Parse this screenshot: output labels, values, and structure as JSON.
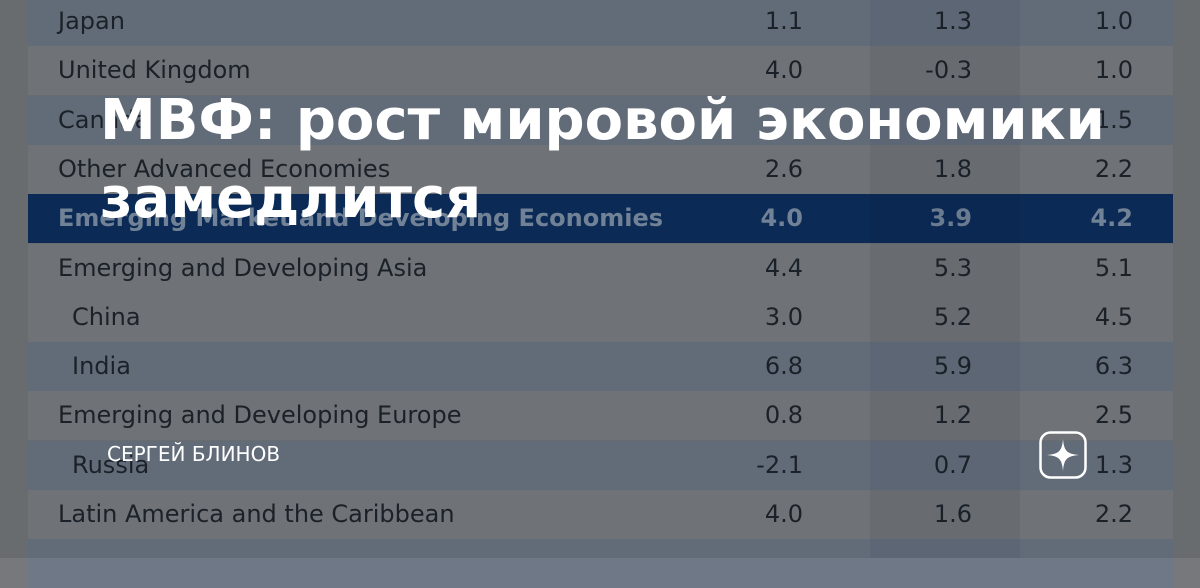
{
  "title": "МВФ: рост мировой экономики замедлится",
  "author": "СЕРГЕЙ БЛИНОВ",
  "table": {
    "rows": [
      [
        "Japan",
        "1.1",
        "1.3",
        "1.0"
      ],
      [
        "United Kingdom",
        "4.0",
        "-0.3",
        "1.0"
      ],
      [
        "Canada",
        null,
        null,
        "1.5"
      ],
      [
        "Other Advanced Economies",
        "2.6",
        "1.8",
        "2.2"
      ],
      [
        "Emerging Market and Developing Economies",
        "4.0",
        "3.9",
        "4.2"
      ],
      [
        "Emerging and Developing Asia",
        "4.4",
        "5.3",
        "5.1"
      ],
      [
        "China",
        "3.0",
        "5.2",
        "4.5"
      ],
      [
        "India",
        "6.8",
        "5.9",
        "6.3"
      ],
      [
        "Emerging and Developing Europe",
        "0.8",
        "1.2",
        "2.5"
      ],
      [
        "Russia",
        "-2.1",
        "0.7",
        "1.3"
      ],
      [
        "Latin America and the Caribbean",
        "4.0",
        "1.6",
        "2.2"
      ]
    ]
  }
}
